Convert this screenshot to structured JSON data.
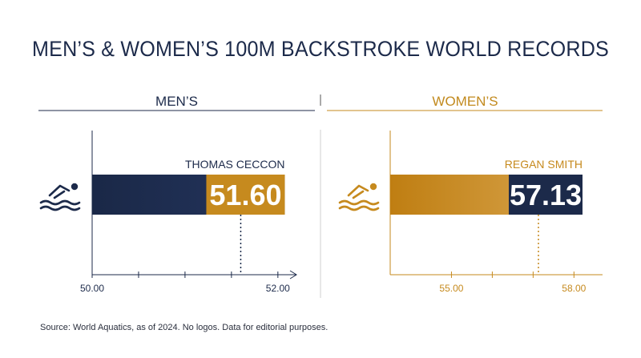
{
  "title": "MEN’S & WOMEN’S 100M BACKSTROKE WORLD RECORDS",
  "source": "Source: World Aquatics, as of 2024. No logos. Data for editorial purposes.",
  "colors": {
    "navy": "#1c2a4a",
    "gold": "#c68a1e"
  },
  "icons": [
    "swimmer-icon"
  ],
  "chart_data": [
    {
      "type": "bar",
      "panel_title": "MEN’S",
      "holder": "THOMAS CECCON",
      "value": 51.6,
      "value_label": "51.60",
      "xlim": [
        50.0,
        52.2
      ],
      "ticks": [
        50.0,
        52.0
      ],
      "tick_labels": [
        "50.00",
        "52.00"
      ],
      "minor_ticks": [
        50.5,
        51.0,
        51.5
      ],
      "color": "#1c2a4a",
      "label_color": "#c68a1e"
    },
    {
      "type": "bar",
      "panel_title": "WOMEN’S",
      "holder": "REGAN SMITH",
      "value": 57.13,
      "value_label": "57.13",
      "xlim": [
        53.5,
        58.7
      ],
      "ticks": [
        55.0,
        58.0
      ],
      "tick_labels": [
        "55.00",
        "58.00"
      ],
      "minor_ticks": [
        56.0,
        57.0
      ],
      "color": "#c68a1e",
      "label_color": "#1c2a4a"
    }
  ]
}
